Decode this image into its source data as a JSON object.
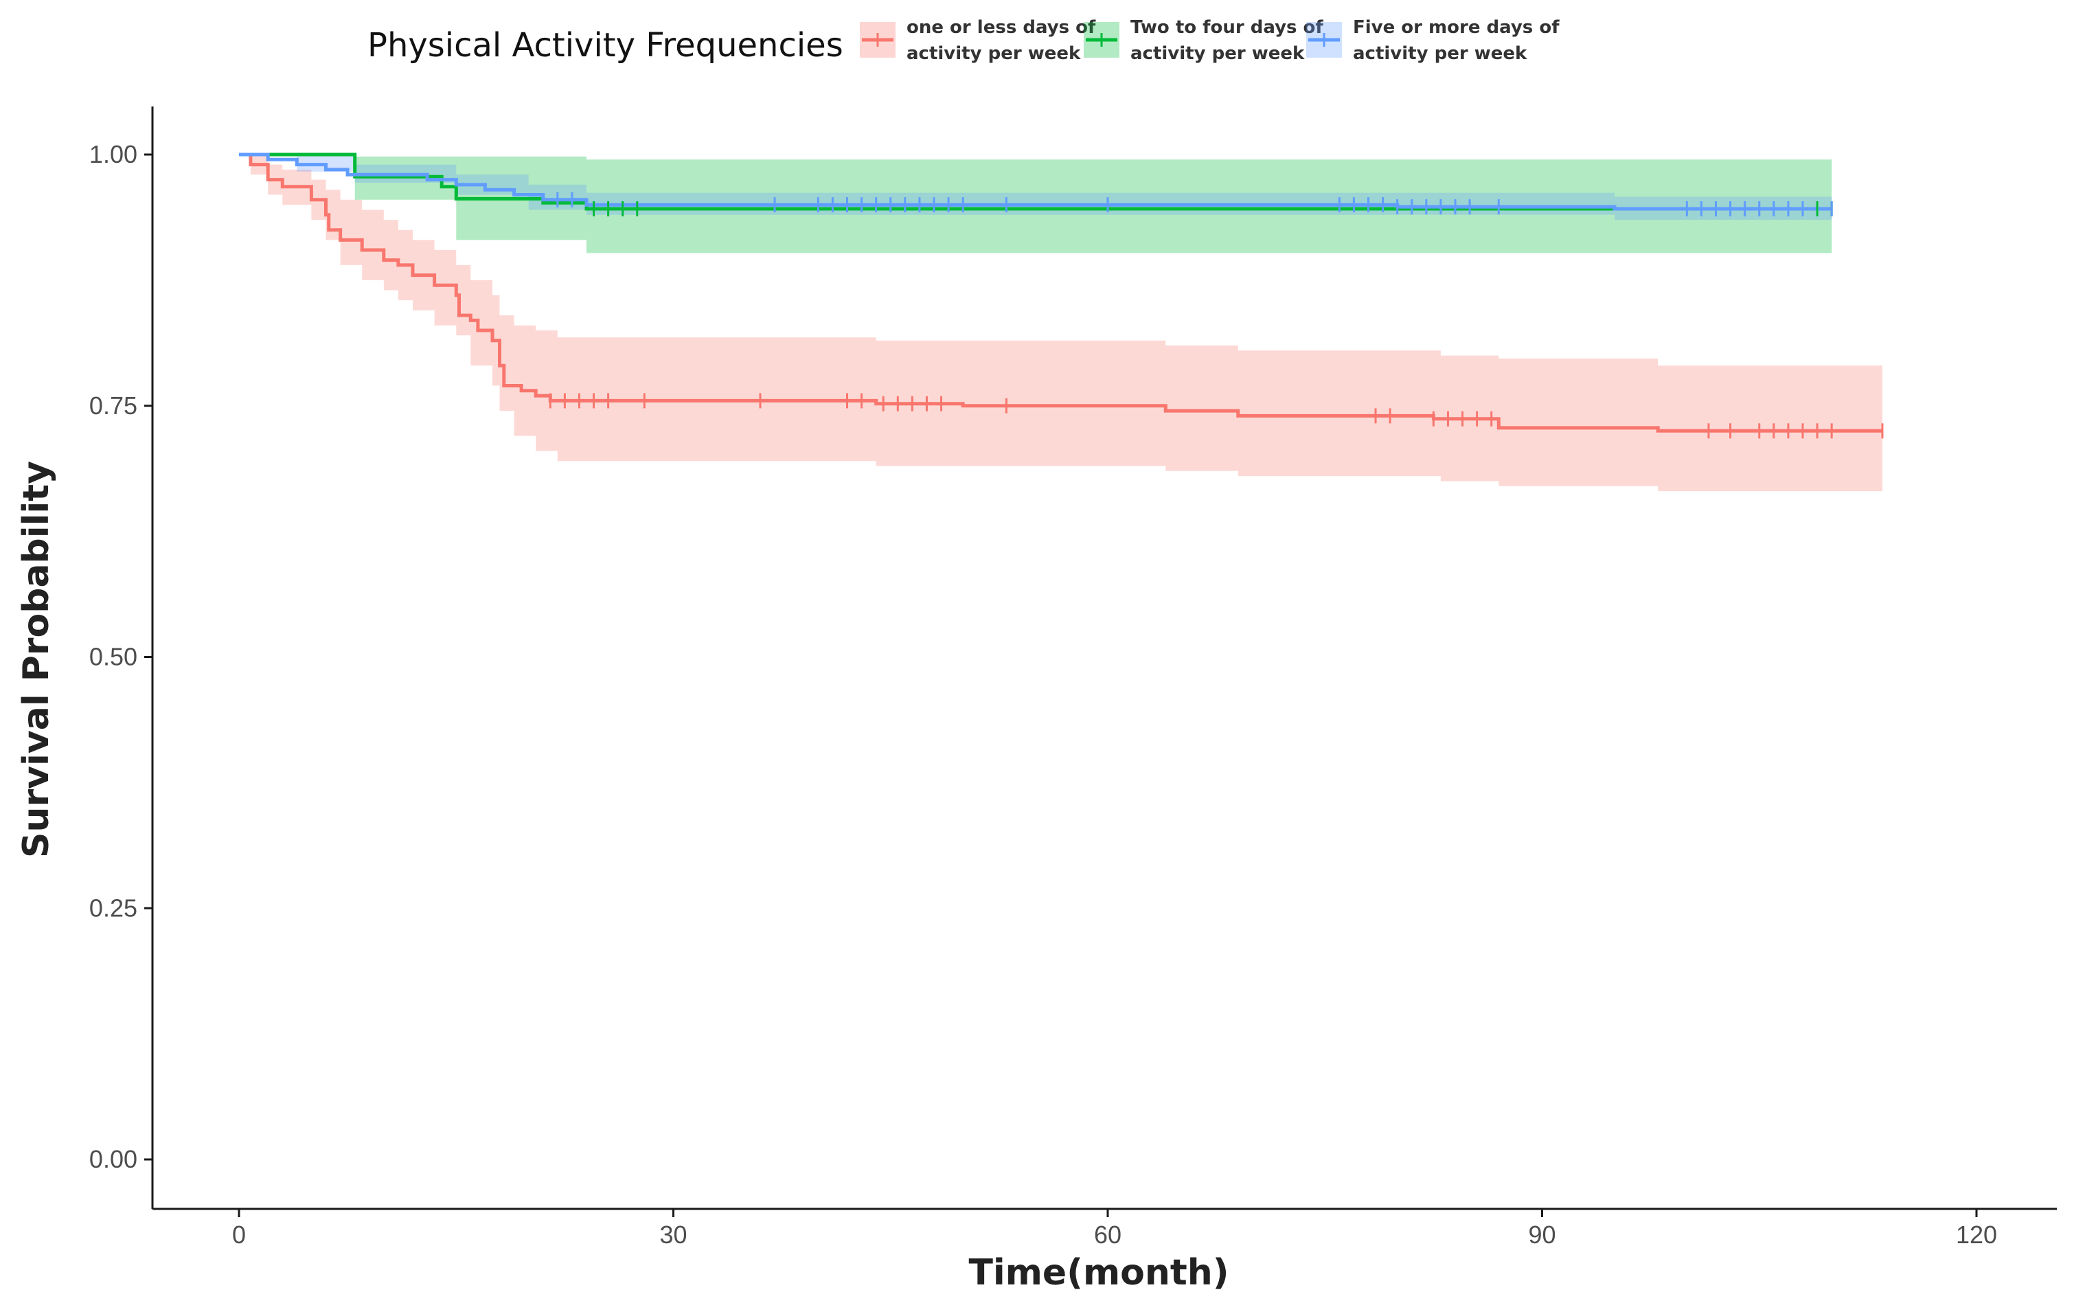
{
  "chart_data": {
    "type": "line",
    "subtype": "kaplan-meier",
    "title": "",
    "xlabel": "Time(month)",
    "ylabel": "Survival Probability",
    "xlim": [
      -5,
      126
    ],
    "ylim": [
      -0.05,
      1.05
    ],
    "xticks": [
      0,
      30,
      60,
      90,
      120
    ],
    "xtick_labels": [
      "0",
      "30",
      "60",
      "90",
      "120"
    ],
    "yticks": [
      0,
      0.25,
      0.5,
      0.75,
      1
    ],
    "ytick_labels": [
      "0.00",
      "0.25",
      "0.50",
      "0.75",
      "1.00"
    ],
    "grid": false,
    "legend": {
      "title": "Physical Activity Frequencies",
      "placement": "top",
      "entries": [
        {
          "line1": "one or less days of",
          "line2": "activity per week"
        },
        {
          "line1": "Two to four days of",
          "line2": "activity per week"
        },
        {
          "line1": "Five or more days of",
          "line2": "activity  per week"
        }
      ]
    },
    "series": [
      {
        "name": "one or less days of activity per week",
        "color": "#F8766D",
        "band_color": "#F8766D",
        "steps": [
          [
            0,
            1.0
          ],
          [
            0.8,
            0.99
          ],
          [
            2,
            0.975
          ],
          [
            3,
            0.968
          ],
          [
            5,
            0.955
          ],
          [
            6,
            0.94
          ],
          [
            6.2,
            0.925
          ],
          [
            7,
            0.915
          ],
          [
            8.5,
            0.905
          ],
          [
            10,
            0.895
          ],
          [
            11,
            0.89
          ],
          [
            12,
            0.88
          ],
          [
            13.5,
            0.87
          ],
          [
            15,
            0.86
          ],
          [
            15.2,
            0.84
          ],
          [
            16,
            0.835
          ],
          [
            16.5,
            0.825
          ],
          [
            17.5,
            0.815
          ],
          [
            18,
            0.79
          ],
          [
            18.3,
            0.77
          ],
          [
            19.5,
            0.765
          ],
          [
            20.5,
            0.76
          ],
          [
            21.5,
            0.755
          ],
          [
            44,
            0.752
          ],
          [
            50,
            0.75
          ],
          [
            64,
            0.745
          ],
          [
            69,
            0.74
          ],
          [
            82.5,
            0.737
          ],
          [
            87,
            0.728
          ],
          [
            98,
            0.725
          ],
          [
            113.5,
            0.725
          ]
        ],
        "lower": [
          [
            0,
            1.0
          ],
          [
            0.8,
            0.98
          ],
          [
            2,
            0.96
          ],
          [
            3,
            0.95
          ],
          [
            5,
            0.935
          ],
          [
            6,
            0.915
          ],
          [
            7,
            0.89
          ],
          [
            8.5,
            0.875
          ],
          [
            10,
            0.865
          ],
          [
            11,
            0.855
          ],
          [
            12,
            0.845
          ],
          [
            13.5,
            0.83
          ],
          [
            15,
            0.82
          ],
          [
            16,
            0.79
          ],
          [
            17.5,
            0.77
          ],
          [
            18,
            0.745
          ],
          [
            19,
            0.72
          ],
          [
            20.5,
            0.705
          ],
          [
            22,
            0.695
          ],
          [
            44,
            0.69
          ],
          [
            64,
            0.685
          ],
          [
            69,
            0.68
          ],
          [
            83,
            0.675
          ],
          [
            87,
            0.67
          ],
          [
            98,
            0.665
          ],
          [
            113.5,
            0.665
          ]
        ],
        "upper": [
          [
            0,
            1.0
          ],
          [
            0.8,
            1.0
          ],
          [
            2,
            0.99
          ],
          [
            3,
            0.985
          ],
          [
            5,
            0.975
          ],
          [
            6,
            0.965
          ],
          [
            7,
            0.955
          ],
          [
            8.5,
            0.945
          ],
          [
            10,
            0.935
          ],
          [
            11,
            0.925
          ],
          [
            12,
            0.915
          ],
          [
            13.5,
            0.905
          ],
          [
            15,
            0.89
          ],
          [
            16,
            0.875
          ],
          [
            17.5,
            0.86
          ],
          [
            18,
            0.84
          ],
          [
            19,
            0.83
          ],
          [
            20.5,
            0.825
          ],
          [
            22,
            0.818
          ],
          [
            44,
            0.815
          ],
          [
            64,
            0.81
          ],
          [
            69,
            0.805
          ],
          [
            83,
            0.8
          ],
          [
            87,
            0.797
          ],
          [
            98,
            0.79
          ],
          [
            113.5,
            0.79
          ]
        ],
        "censor_times": [
          21.5,
          22.5,
          23.5,
          24.5,
          25.5,
          28,
          36,
          42,
          43,
          44.5,
          45.5,
          46.5,
          47.5,
          48.5,
          53,
          78.5,
          79.5,
          82.5,
          83.5,
          84.5,
          85.5,
          86.5,
          101.5,
          103,
          105,
          106,
          107,
          108,
          109,
          110,
          113.5
        ]
      },
      {
        "name": "Two to four days of activity per week",
        "color": "#00BA38",
        "band_color": "#00BA38",
        "steps": [
          [
            0,
            1.0
          ],
          [
            8,
            0.978
          ],
          [
            14,
            0.968
          ],
          [
            15,
            0.956
          ],
          [
            19,
            0.956
          ],
          [
            21,
            0.952
          ],
          [
            24,
            0.946
          ],
          [
            110,
            0.946
          ]
        ],
        "lower": [
          [
            0,
            1.0
          ],
          [
            8,
            0.955
          ],
          [
            15,
            0.915
          ],
          [
            24,
            0.902
          ],
          [
            110,
            0.902
          ]
        ],
        "upper": [
          [
            0,
            1.0
          ],
          [
            8,
            0.998
          ],
          [
            24,
            0.995
          ],
          [
            110,
            0.995
          ]
        ],
        "censor_times": [
          24.5,
          25.5,
          26.5,
          27.5,
          108,
          109,
          110
        ]
      },
      {
        "name": "Five or more days of activity per week",
        "color": "#619CFF",
        "band_color": "#619CFF",
        "steps": [
          [
            0,
            1.0
          ],
          [
            2,
            0.995
          ],
          [
            4,
            0.99
          ],
          [
            6,
            0.985
          ],
          [
            7.5,
            0.98
          ],
          [
            13,
            0.975
          ],
          [
            15,
            0.97
          ],
          [
            17,
            0.965
          ],
          [
            19,
            0.96
          ],
          [
            21,
            0.955
          ],
          [
            24,
            0.95
          ],
          [
            60,
            0.95
          ],
          [
            80,
            0.948
          ],
          [
            95,
            0.946
          ],
          [
            110,
            0.946
          ]
        ],
        "lower": [
          [
            0,
            1.0
          ],
          [
            4,
            0.983
          ],
          [
            8,
            0.972
          ],
          [
            15,
            0.96
          ],
          [
            20,
            0.945
          ],
          [
            24,
            0.94
          ],
          [
            60,
            0.94
          ],
          [
            95,
            0.935
          ],
          [
            110,
            0.935
          ]
        ],
        "upper": [
          [
            0,
            1.0
          ],
          [
            8,
            0.99
          ],
          [
            15,
            0.98
          ],
          [
            20,
            0.97
          ],
          [
            24,
            0.962
          ],
          [
            60,
            0.962
          ],
          [
            95,
            0.958
          ],
          [
            110,
            0.958
          ]
        ],
        "censor_times": [
          22,
          23,
          37,
          40,
          41,
          42,
          43,
          44,
          45,
          46,
          47,
          48,
          49,
          50,
          53,
          60,
          76,
          77,
          78,
          79,
          80,
          81,
          82,
          83,
          84,
          85,
          87,
          100,
          101,
          102,
          103,
          104,
          105,
          106,
          107,
          108,
          110
        ]
      }
    ]
  }
}
